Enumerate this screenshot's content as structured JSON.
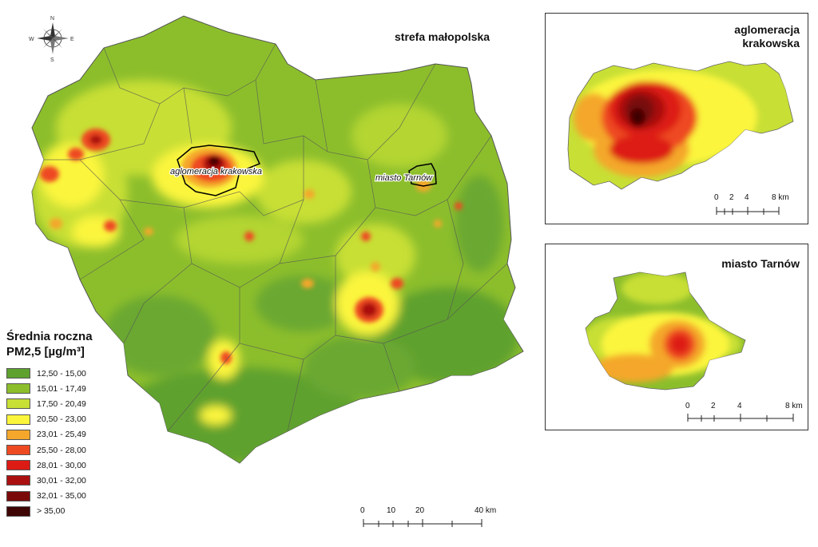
{
  "main_map": {
    "title": "strefa małopolska",
    "labels": {
      "krakow": "aglomeracja krakowska",
      "tarnow": "miasto Tarnów"
    },
    "compass": {
      "n": "N",
      "s": "S",
      "e": "E",
      "w": "W"
    },
    "scale": {
      "ticks": [
        "0",
        "10",
        "20",
        "40 km"
      ]
    }
  },
  "legend": {
    "title_line1": "Średnia roczna",
    "title_line2": "PM2,5 [µg/m³]",
    "classes": [
      {
        "label": "12,50 - 15,00",
        "color": "#5ea12f"
      },
      {
        "label": "15,01 - 17,49",
        "color": "#8cbe2c"
      },
      {
        "label": "17,50 - 20,49",
        "color": "#c8df35"
      },
      {
        "label": "20,50 - 23,00",
        "color": "#fbf53c"
      },
      {
        "label": "23,01 - 25,49",
        "color": "#f4a72b"
      },
      {
        "label": "25,50 - 28,00",
        "color": "#ee4a22"
      },
      {
        "label": "28,01 - 30,00",
        "color": "#dd1b15"
      },
      {
        "label": "30,01 - 32,00",
        "color": "#aa1010"
      },
      {
        "label": "32,01 - 35,00",
        "color": "#7a0a0a"
      },
      {
        "label": "> 35,00",
        "color": "#3e0505"
      }
    ]
  },
  "inset_krakow": {
    "title_line1": "aglomeracja",
    "title_line2": "krakowska",
    "scale": {
      "ticks": [
        "0",
        "2",
        "4",
        "8 km"
      ]
    }
  },
  "inset_tarnow": {
    "title": "miasto Tarnów",
    "scale": {
      "ticks": [
        "0",
        "2",
        "4",
        "8 km"
      ]
    }
  }
}
